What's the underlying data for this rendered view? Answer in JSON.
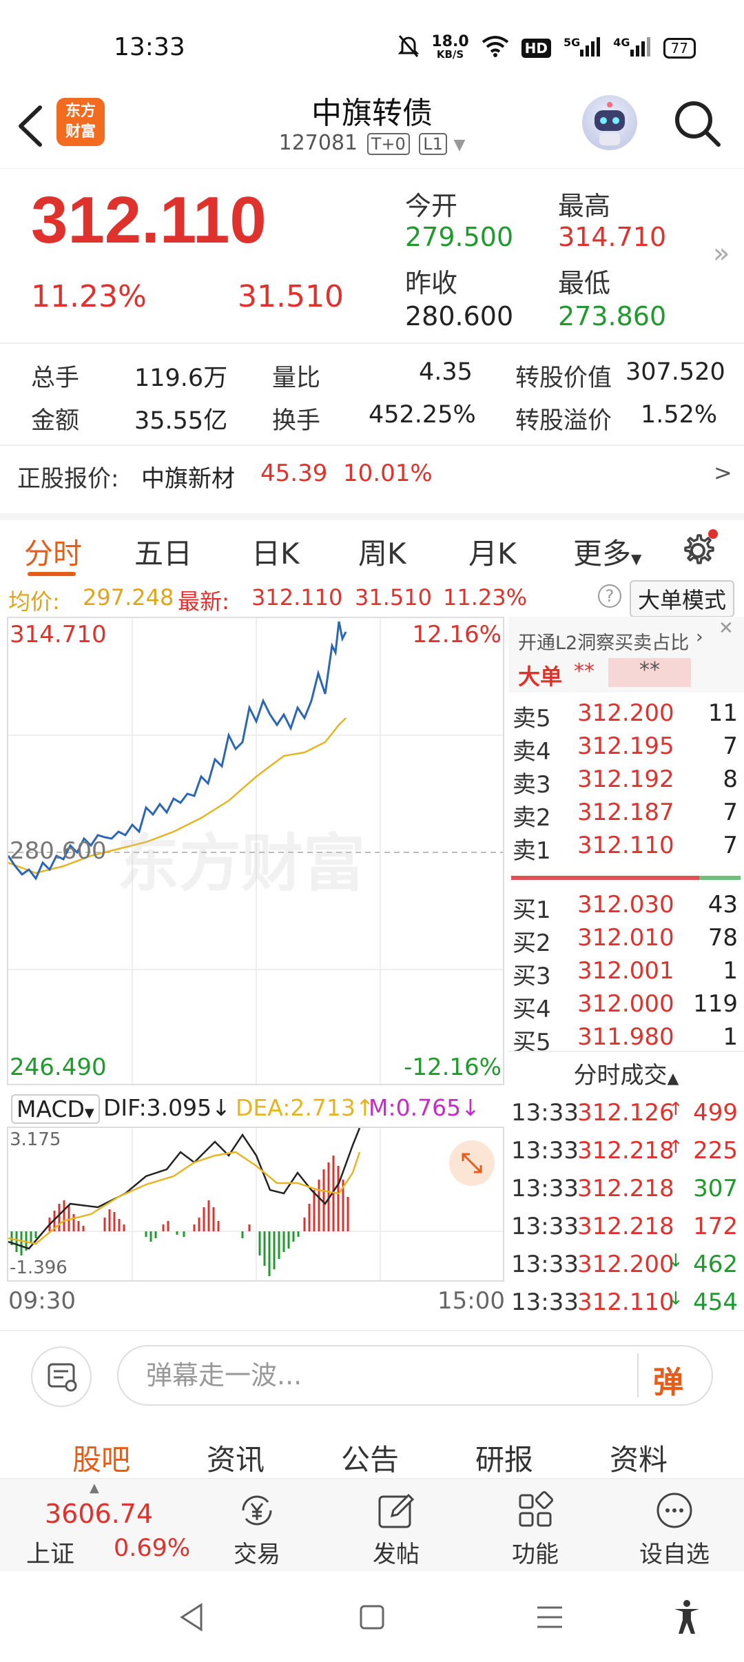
{
  "status": {
    "time": "13:33",
    "net_speed_top": "18.0",
    "net_speed_unit": "KB/S",
    "hd": "HD",
    "sig1": "5G",
    "sig2": "4G",
    "battery": "77"
  },
  "header": {
    "title": "中旗转债",
    "code": "127081",
    "tag1": "T+0",
    "tag2": "L1",
    "logo_line1": "东方",
    "logo_line2": "财富"
  },
  "quote": {
    "price": "312.110",
    "change_pct": "11.23%",
    "change_val": "31.510",
    "open_label": "今开",
    "open": "279.500",
    "high_label": "最高",
    "high": "314.710",
    "prev_close_label": "昨收",
    "prev_close": "280.600",
    "low_label": "最低",
    "low": "273.860"
  },
  "stats": {
    "vol_label": "总手",
    "vol": "119.6万",
    "ratio_label": "量比",
    "ratio": "4.35",
    "conv_value_label": "转股价值",
    "conv_value": "307.520",
    "amount_label": "金额",
    "amount": "35.55亿",
    "turnover_label": "换手",
    "turnover": "452.25%",
    "premium_label": "转股溢价",
    "premium": "1.52%"
  },
  "stock_row": {
    "label": "正股报价:",
    "name": "中旗新材",
    "price": "45.39",
    "pct": "10.01%",
    "arrow": ">"
  },
  "tabs": [
    "分时",
    "五日",
    "日K",
    "周K",
    "月K",
    "更多"
  ],
  "info_row": {
    "avg_label": "均价:",
    "avg": "297.248",
    "latest_label": "最新:",
    "latest": "312.110",
    "chg": "31.510",
    "pct": "11.23%",
    "help": "?",
    "mode_button": "大单模式"
  },
  "chart": {
    "y_top": "314.710",
    "y_mid": "280.600",
    "y_bot": "246.490",
    "pct_top": "12.16%",
    "pct_bot": "-12.16%",
    "x_start": "09:30",
    "x_end": "15:00",
    "watermark": "东方财富",
    "macd_label": "MACD",
    "dif": "DIF:3.095",
    "dea": "DEA:2.713",
    "m": "M:0.765",
    "macd_top": "3.175",
    "macd_bot": "-1.396"
  },
  "book": {
    "l2_text": "开通L2洞察买卖占比",
    "big_order": "大单",
    "mask1": "**",
    "mask2": "**",
    "asks": [
      {
        "label": "卖5",
        "price": "312.200",
        "vol": "11"
      },
      {
        "label": "卖4",
        "price": "312.195",
        "vol": "7"
      },
      {
        "label": "卖3",
        "price": "312.192",
        "vol": "8"
      },
      {
        "label": "卖2",
        "price": "312.187",
        "vol": "7"
      },
      {
        "label": "卖1",
        "price": "312.110",
        "vol": "7"
      }
    ],
    "bids": [
      {
        "label": "买1",
        "price": "312.030",
        "vol": "43"
      },
      {
        "label": "买2",
        "price": "312.010",
        "vol": "78"
      },
      {
        "label": "买3",
        "price": "312.001",
        "vol": "1"
      },
      {
        "label": "买4",
        "price": "312.000",
        "vol": "119"
      },
      {
        "label": "买5",
        "price": "311.980",
        "vol": "1"
      }
    ],
    "ticks_title": "分时成交",
    "ticks": [
      {
        "time": "13:33",
        "price": "312.126",
        "dir": "↑",
        "vol": "499",
        "color": "red"
      },
      {
        "time": "13:33",
        "price": "312.218",
        "dir": "↑",
        "vol": "225",
        "color": "red"
      },
      {
        "time": "13:33",
        "price": "312.218",
        "dir": "",
        "vol": "307",
        "color": "green"
      },
      {
        "time": "13:33",
        "price": "312.218",
        "dir": "",
        "vol": "172",
        "color": "red"
      },
      {
        "time": "13:33",
        "price": "312.200",
        "dir": "↓",
        "vol": "462",
        "color": "green"
      },
      {
        "time": "13:33",
        "price": "312.110",
        "dir": "↓",
        "vol": "454",
        "color": "green"
      }
    ]
  },
  "comment": {
    "placeholder": "弹幕走一波...",
    "danmu": "弹"
  },
  "bottom_tabs": [
    "股吧",
    "资讯",
    "公告",
    "研报",
    "资料"
  ],
  "bottom_nav": {
    "index_value": "3606.74",
    "index_name": "上证",
    "index_pct": "0.69%",
    "trade": "交易",
    "post": "发帖",
    "func": "功能",
    "watch": "设自选"
  }
}
